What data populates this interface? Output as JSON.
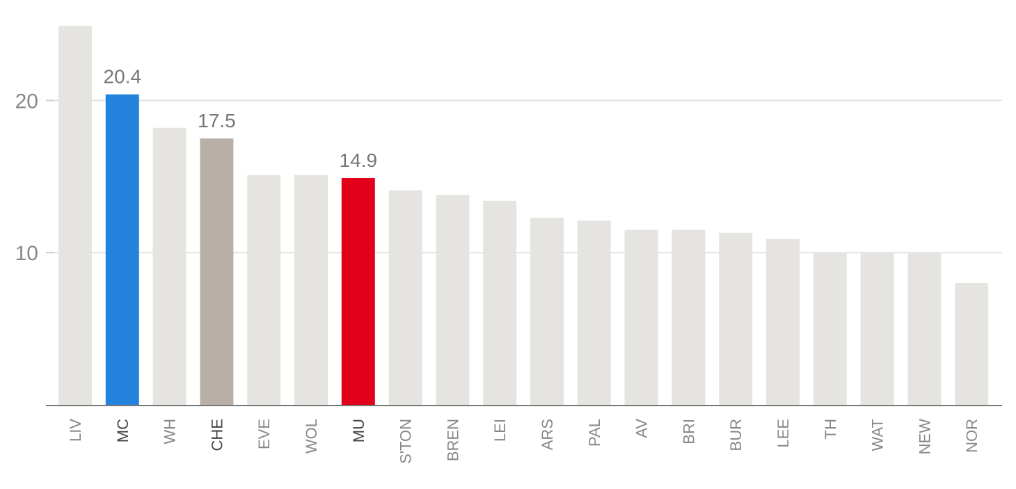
{
  "chart_data": {
    "type": "bar",
    "categories": [
      "LIV",
      "MC",
      "WH",
      "CHE",
      "EVE",
      "WOL",
      "MU",
      "S'TON",
      "BREN",
      "LEI",
      "ARS",
      "PAL",
      "AV",
      "BRI",
      "BUR",
      "LEE",
      "TH",
      "WAT",
      "NEW",
      "NOR"
    ],
    "values": [
      24.9,
      20.4,
      18.2,
      17.5,
      15.1,
      15.1,
      14.9,
      14.1,
      13.8,
      13.4,
      12.3,
      12.1,
      11.5,
      11.5,
      11.3,
      10.9,
      10.0,
      10.0,
      10.0,
      8.0
    ],
    "highlighted": [
      {
        "category": "MC",
        "value_label": "20.4",
        "color": "#2483dd"
      },
      {
        "category": "CHE",
        "value_label": "17.5",
        "color": "#b8b0a6"
      },
      {
        "category": "MU",
        "value_label": "14.9",
        "color": "#e2001a"
      }
    ],
    "default_bar_color": "#e5e4e0",
    "ylim": [
      0,
      25
    ],
    "yticks": [
      "10",
      "20"
    ],
    "grid": true,
    "title": "",
    "xlabel": "",
    "ylabel": "",
    "colors": {
      "grid": "#e2e2e2",
      "axis": "#777777",
      "tick_label": "#888888",
      "tick_label_highlight": "#444444",
      "value_label": "#777777"
    }
  }
}
